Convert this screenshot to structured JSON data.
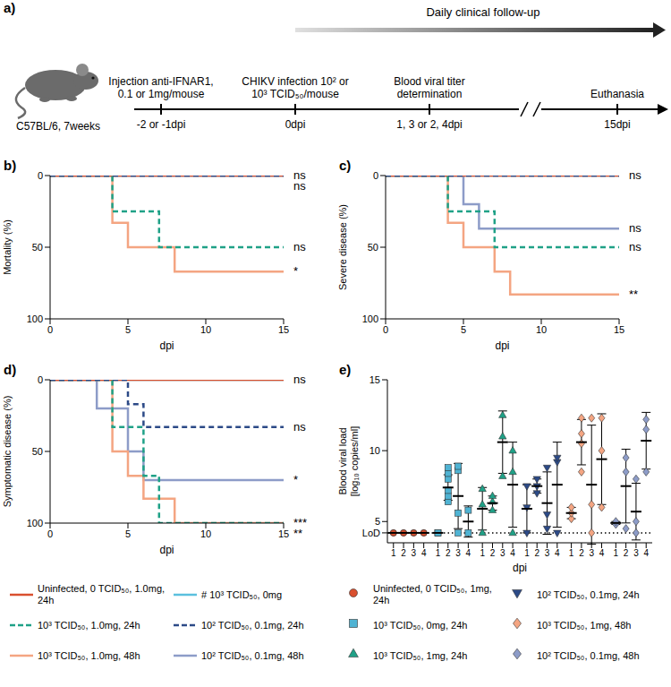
{
  "panel_a": {
    "panel": "a)",
    "subject": "C57BL/6, 7weeks",
    "follow_up": "Daily clinical follow-up",
    "events": [
      {
        "above": "Injection anti-IFNAR1, 0.1 or 1mg/mouse",
        "below": "-2 or -1dpi"
      },
      {
        "above": "CHIKV infection 10² or 10³ TCID₅₀/mouse",
        "below": "0dpi"
      },
      {
        "above": "Blood viral titer determination",
        "below": "1, 3 or 2, 4dpi"
      },
      {
        "above": "Euthanasia",
        "below": "15dpi"
      }
    ]
  },
  "chart_data": [
    {
      "panel": "b)",
      "type": "step",
      "x_label": "dpi",
      "y_label": "Mortality (%)",
      "xlim": [
        0,
        15
      ],
      "xticks": [
        0,
        5,
        10,
        15
      ],
      "ylim": [
        100,
        0
      ],
      "yticks": [
        0,
        50,
        100
      ],
      "series": [
        {
          "name": "Uninfected, 0 TCID₅₀, 1.0mg, 24h",
          "color": "#d9502f",
          "line_style": "solid",
          "x": [
            0,
            15
          ],
          "values": [
            0,
            0
          ]
        },
        {
          "name": "10³ TCID₅₀, 1.0mg, 24h",
          "color": "#1fa187",
          "line_style": "dashed",
          "x": [
            0,
            4,
            7,
            15
          ],
          "values": [
            0,
            25,
            50,
            50
          ],
          "annotation": "ns"
        },
        {
          "name": "10³ TCID₅₀, 1.0mg, 48h",
          "color": "#f4a582",
          "line_style": "solid",
          "x": [
            0,
            4,
            5,
            8,
            15
          ],
          "values": [
            0,
            33,
            50,
            67,
            67
          ],
          "annotation": "*"
        },
        {
          "name": "# 10³ TCID₅₀, 0mg",
          "color": "#5bc0de",
          "line_style": "solid",
          "x": [
            0,
            15
          ],
          "values": [
            0,
            0
          ]
        },
        {
          "name": "10² TCID₅₀, 0.1mg, 24h",
          "color": "#2c4a87",
          "line_style": "dashed",
          "x": [
            0,
            15
          ],
          "values": [
            0,
            0
          ],
          "annotation": "ns"
        },
        {
          "name": "10² TCID₅₀, 0.1mg, 48h",
          "color": "#8d9cc8",
          "line_style": "solid",
          "x": [
            0,
            15
          ],
          "values": [
            0,
            0
          ],
          "annotation": "ns"
        }
      ]
    },
    {
      "panel": "c)",
      "type": "step",
      "x_label": "dpi",
      "y_label": "Severe disease (%)",
      "xlim": [
        0,
        15
      ],
      "xticks": [
        0,
        5,
        10,
        15
      ],
      "ylim": [
        100,
        0
      ],
      "yticks": [
        0,
        50,
        100
      ],
      "series": [
        {
          "name": "Uninfected, 0 TCID₅₀, 1.0mg, 24h",
          "color": "#d9502f",
          "line_style": "solid",
          "x": [
            0,
            15
          ],
          "values": [
            0,
            0
          ]
        },
        {
          "name": "10³ TCID₅₀, 1.0mg, 24h",
          "color": "#1fa187",
          "line_style": "dashed",
          "x": [
            0,
            4,
            7,
            15
          ],
          "values": [
            0,
            25,
            50,
            50
          ],
          "annotation": "ns"
        },
        {
          "name": "10³ TCID₅₀, 1.0mg, 48h",
          "color": "#f4a582",
          "line_style": "solid",
          "x": [
            0,
            4,
            5,
            7,
            8,
            15
          ],
          "values": [
            0,
            33,
            50,
            67,
            83,
            83
          ],
          "annotation": "**"
        },
        {
          "name": "# 10³ TCID₅₀, 0mg",
          "color": "#5bc0de",
          "line_style": "solid",
          "x": [
            0,
            15
          ],
          "values": [
            0,
            0
          ]
        },
        {
          "name": "10² TCID₅₀, 0.1mg, 24h",
          "color": "#2c4a87",
          "line_style": "dashed",
          "x": [
            0,
            15
          ],
          "values": [
            0,
            0
          ],
          "annotation": "ns"
        },
        {
          "name": "10² TCID₅₀, 0.1mg, 48h",
          "color": "#8d9cc8",
          "line_style": "solid",
          "x": [
            0,
            5,
            6,
            15
          ],
          "values": [
            0,
            20,
            37,
            37
          ],
          "annotation": "ns"
        }
      ]
    },
    {
      "panel": "d)",
      "type": "step",
      "x_label": "dpi",
      "y_label": "Symptomatic disease (%)",
      "xlim": [
        0,
        15
      ],
      "xticks": [
        0,
        5,
        10,
        15
      ],
      "ylim": [
        100,
        0
      ],
      "yticks": [
        0,
        50,
        100
      ],
      "series": [
        {
          "name": "Uninfected, 0 TCID₅₀, 1.0mg, 24h",
          "color": "#d9502f",
          "line_style": "solid",
          "x": [
            0,
            15
          ],
          "values": [
            0,
            0
          ]
        },
        {
          "name": "10³ TCID₅₀, 1.0mg, 24h",
          "color": "#1fa187",
          "line_style": "dashed",
          "x": [
            0,
            4,
            6,
            7,
            15
          ],
          "values": [
            0,
            33,
            67,
            100,
            100
          ],
          "annotation": "***"
        },
        {
          "name": "10³ TCID₅₀, 1.0mg, 48h",
          "color": "#f4a582",
          "line_style": "solid",
          "x": [
            0,
            4,
            5,
            6,
            8,
            15
          ],
          "values": [
            0,
            50,
            67,
            83,
            100,
            100
          ],
          "annotation": "**"
        },
        {
          "name": "# 10³ TCID₅₀, 0mg",
          "color": "#5bc0de",
          "line_style": "solid",
          "x": [
            0,
            15
          ],
          "values": [
            0,
            0
          ],
          "annotation": "ns"
        },
        {
          "name": "10² TCID₅₀, 0.1mg, 24h",
          "color": "#2c4a87",
          "line_style": "dashed",
          "x": [
            0,
            5,
            6,
            15
          ],
          "values": [
            0,
            17,
            33,
            33
          ],
          "annotation": "ns"
        },
        {
          "name": "10² TCID₅₀, 0.1mg, 48h",
          "color": "#8d9cc8",
          "line_style": "solid",
          "x": [
            0,
            3,
            5,
            6,
            15
          ],
          "values": [
            0,
            20,
            50,
            70,
            70
          ],
          "annotation": "*"
        }
      ]
    },
    {
      "panel": "e)",
      "type": "scatter",
      "x_label": "dpi",
      "y_label": "Blood viral load [log₁₀ copies/ml]",
      "categories": [
        "1",
        "2",
        "3",
        "4"
      ],
      "ylim": [
        3.5,
        15
      ],
      "yticks": [
        {
          "value": 4.2,
          "label": "LoD"
        },
        5,
        10,
        15
      ],
      "series": [
        {
          "name": "Uninfected, 0 TCID₅₀, 1mg, 24h",
          "color": "#d9502f",
          "marker": "circle",
          "points": [
            [
              4.2,
              4.2
            ],
            [
              4.2,
              4.2
            ],
            [
              4.2,
              4.2
            ],
            [
              4.2,
              4.2
            ]
          ],
          "mean": [
            4.2,
            4.2,
            4.2,
            4.2
          ],
          "sd": [
            0,
            0,
            0,
            0
          ]
        },
        {
          "name": "10³ TCID₅₀, 0mg, 24h",
          "color": "#4fb3d3",
          "marker": "square",
          "points": [
            [
              4.2,
              4.2
            ],
            [
              6.4,
              6.8,
              7.2,
              8.0,
              8.4,
              8.8
            ],
            [
              4.2,
              5.6,
              8.6,
              8.9
            ],
            [
              4.2,
              5.8
            ]
          ],
          "mean": [
            4.2,
            7.4,
            6.8,
            5.0
          ],
          "sd": [
            0,
            0.9,
            2.3,
            1.1
          ]
        },
        {
          "name": "10³ TCID₅₀, 1mg, 24h",
          "color": "#1fa187",
          "marker": "triangle",
          "points": [
            [
              4.2,
              6.2,
              7.3
            ],
            [
              5.8,
              6.4,
              6.8
            ],
            [
              8.2,
              11.0,
              12.5
            ],
            [
              4.2,
              8.5,
              10.0
            ]
          ],
          "mean": [
            5.9,
            6.3,
            10.6,
            7.6
          ],
          "sd": [
            1.5,
            0.5,
            2.2,
            3.0
          ]
        },
        {
          "name": "10² TCID₅₀, 0.1mg, 24h",
          "color": "#2c4a87",
          "marker": "triangle-down",
          "points": [
            [
              4.2,
              6.0,
              7.5
            ],
            [
              7.0,
              7.5,
              8.0
            ],
            [
              4.5,
              5.5,
              8.8
            ],
            [
              4.2,
              9.2,
              9.5
            ]
          ],
          "mean": [
            5.9,
            7.5,
            6.3,
            7.6
          ],
          "sd": [
            1.7,
            0.5,
            2.2,
            3.0
          ]
        },
        {
          "name": "10³ TCID₅₀, 1mg, 48h",
          "color": "#f4a582",
          "marker": "diamond",
          "points": [
            [
              5.2,
              5.6,
              6.0
            ],
            [
              8.5,
              10.5,
              11.2,
              12.3
            ],
            [
              4.2,
              6.2,
              12.3
            ],
            [
              6.0,
              10.0,
              12.3
            ]
          ],
          "mean": [
            5.6,
            10.6,
            7.6,
            9.4
          ],
          "sd": [
            0.4,
            1.6,
            4.2,
            3.2
          ]
        },
        {
          "name": "10² TCID₅₀, 0.1mg, 48h",
          "color": "#8d9cc8",
          "marker": "diamond",
          "points": [
            [
              4.8,
              5.0
            ],
            [
              4.5,
              8.5,
              9.5
            ],
            [
              4.2,
              5.0,
              8.0
            ],
            [
              8.5,
              11.5,
              12.2
            ]
          ],
          "mean": [
            4.9,
            7.5,
            5.7,
            10.7
          ],
          "sd": [
            0.1,
            2.6,
            2.0,
            2.0
          ]
        }
      ]
    }
  ]
}
